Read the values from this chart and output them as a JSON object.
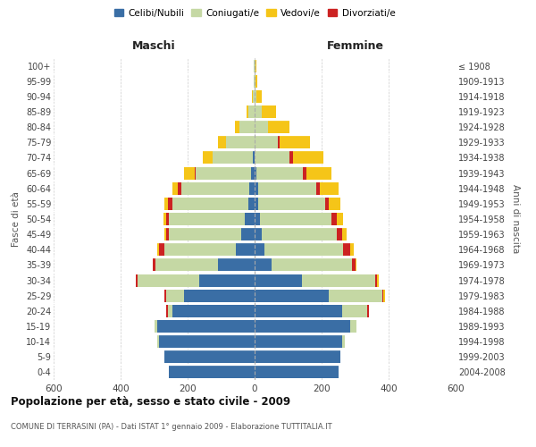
{
  "age_groups": [
    "0-4",
    "5-9",
    "10-14",
    "15-19",
    "20-24",
    "25-29",
    "30-34",
    "35-39",
    "40-44",
    "45-49",
    "50-54",
    "55-59",
    "60-64",
    "65-69",
    "70-74",
    "75-79",
    "80-84",
    "85-89",
    "90-94",
    "95-99",
    "100+"
  ],
  "birth_years": [
    "2004-2008",
    "1999-2003",
    "1994-1998",
    "1989-1993",
    "1984-1988",
    "1979-1983",
    "1974-1978",
    "1969-1973",
    "1964-1968",
    "1959-1963",
    "1954-1958",
    "1949-1953",
    "1944-1948",
    "1939-1943",
    "1934-1938",
    "1929-1933",
    "1924-1928",
    "1919-1923",
    "1914-1918",
    "1909-1913",
    "≤ 1908"
  ],
  "maschi": {
    "celibi": [
      255,
      270,
      285,
      290,
      245,
      210,
      165,
      110,
      55,
      40,
      30,
      20,
      15,
      10,
      5,
      0,
      0,
      0,
      0,
      0,
      0
    ],
    "coniugati": [
      0,
      0,
      5,
      10,
      15,
      55,
      185,
      185,
      215,
      215,
      225,
      225,
      205,
      165,
      120,
      85,
      45,
      20,
      5,
      2,
      2
    ],
    "vedovi": [
      0,
      0,
      0,
      0,
      0,
      0,
      0,
      0,
      5,
      5,
      8,
      10,
      15,
      30,
      30,
      25,
      15,
      5,
      2,
      0,
      0
    ],
    "divorziati": [
      0,
      0,
      0,
      0,
      5,
      5,
      5,
      10,
      15,
      10,
      10,
      15,
      10,
      5,
      0,
      0,
      0,
      0,
      0,
      0,
      0
    ]
  },
  "femmine": {
    "nubili": [
      250,
      255,
      260,
      285,
      260,
      220,
      140,
      50,
      30,
      20,
      15,
      10,
      10,
      5,
      0,
      0,
      0,
      0,
      0,
      0,
      0
    ],
    "coniugate": [
      0,
      0,
      10,
      20,
      75,
      160,
      220,
      240,
      235,
      225,
      215,
      200,
      175,
      140,
      105,
      70,
      40,
      20,
      5,
      2,
      2
    ],
    "vedove": [
      0,
      0,
      0,
      0,
      0,
      5,
      5,
      5,
      10,
      15,
      20,
      35,
      55,
      75,
      90,
      90,
      65,
      45,
      15,
      5,
      2
    ],
    "divorziate": [
      0,
      0,
      0,
      0,
      5,
      5,
      5,
      10,
      20,
      15,
      15,
      10,
      10,
      10,
      10,
      5,
      0,
      0,
      0,
      0,
      0
    ]
  },
  "colors": {
    "celibi_nubili": "#3a6ea5",
    "coniugati": "#c5d8a4",
    "vedovi": "#f5c518",
    "divorziati": "#cc2222"
  },
  "title": "Popolazione per età, sesso e stato civile - 2009",
  "subtitle": "COMUNE DI TERRASINI (PA) - Dati ISTAT 1° gennaio 2009 - Elaborazione TUTTITALIA.IT",
  "ylabel_left": "Fasce di età",
  "ylabel_right": "Anni di nascita",
  "xlabel_left": "Maschi",
  "xlabel_right": "Femmine",
  "xlim": 600,
  "legend_labels": [
    "Celibi/Nubili",
    "Coniugati/e",
    "Vedovi/e",
    "Divorziati/e"
  ]
}
